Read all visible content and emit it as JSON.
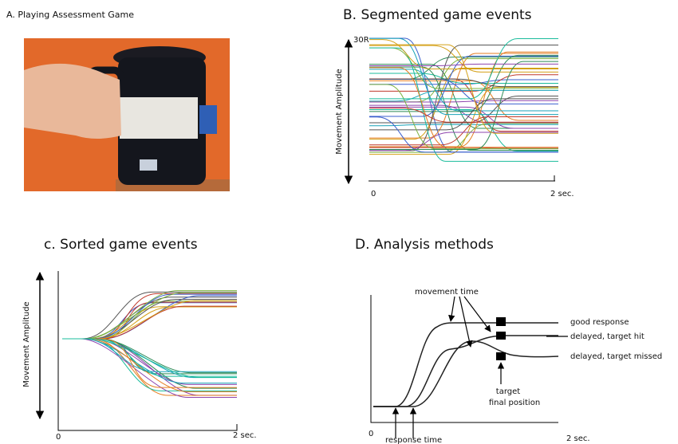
{
  "panel_a": {
    "title": "A. Playing Assessment Game"
  },
  "panel_b": {
    "title": "B. Segmented game events",
    "top_label": "30R",
    "y_label": "Movement Amplitude",
    "x_start": "0",
    "x_end": "2 sec."
  },
  "panel_c": {
    "title": "c. Sorted game events",
    "y_label": "Movement Amplitude",
    "x_start": "0",
    "x_end": "2 sec."
  },
  "panel_d": {
    "title": "D. Analysis methods",
    "movement_time": "movement time",
    "good": "good response",
    "hit": "delayed, target hit",
    "missed": "delayed, target missed",
    "target_1": "target",
    "target_2": "final position",
    "response_time": "response time",
    "x_start": "0",
    "x_end": "2 sec."
  }
}
